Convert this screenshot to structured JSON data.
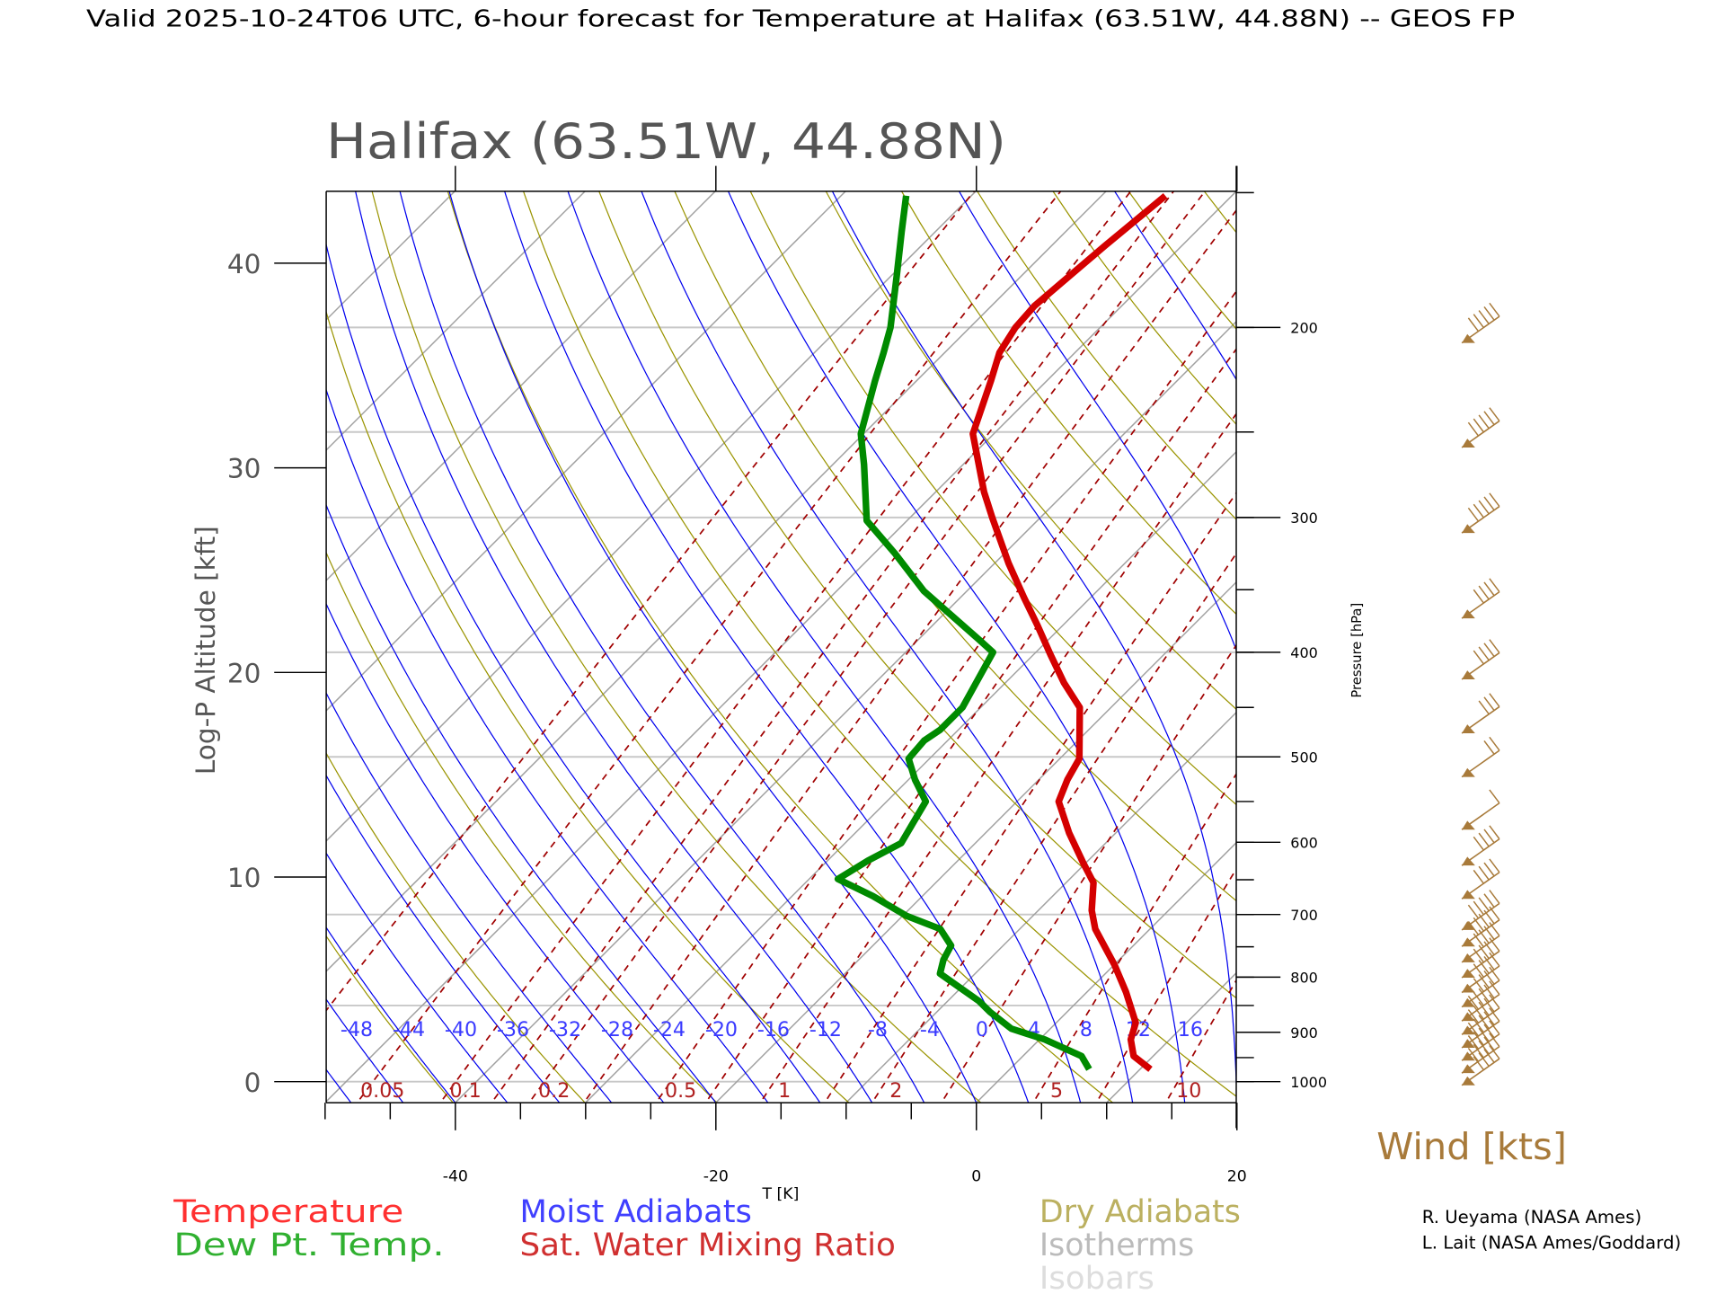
{
  "header": {
    "title": "Valid 2025-10-24T06 UTC, 6-hour forecast for Temperature at Halifax (63.51W, 44.88N) -- GEOS FP"
  },
  "chart_data": {
    "type": "line",
    "subtype": "skew-T log-P diagram",
    "title": "Halifax (63.51W, 44.88N)",
    "xlabel": "T [K]",
    "ylabel": "Log-P Altitude [kft]",
    "y2label": "Pressure [hPa]",
    "xlim": [
      -50,
      20
    ],
    "ylim": [
      -1,
      43.5
    ],
    "xticks": [
      "-40",
      "-20",
      "0",
      "20"
    ],
    "yticks": [
      "0",
      "10",
      "20",
      "30",
      "40"
    ],
    "pressure_ticks": [
      "1000",
      "900",
      "800",
      "700",
      "600",
      "500",
      "400",
      "300",
      "200"
    ],
    "isobars_hPa": [
      1000,
      850,
      700,
      500,
      400,
      300,
      250,
      200
    ],
    "moist_adiabat_labels": [
      "-48",
      "-44",
      "-40",
      "-36",
      "-32",
      "-28",
      "-24",
      "-20",
      "-16",
      "-12",
      "-8",
      "-4",
      "0",
      "4",
      "8",
      "12",
      "16"
    ],
    "mixing_ratio_labels": [
      "0.05",
      "0.1",
      "0.2",
      "0.5",
      "1",
      "2",
      "5",
      "10"
    ],
    "series": [
      {
        "name": "Temperature",
        "color": "#d40000",
        "pressure_hPa": [
          974,
          947,
          914,
          882,
          826,
          779,
          722,
          694,
          654,
          627,
          588,
          550,
          525,
          502,
          450,
          427,
          402,
          378,
          356,
          331,
          300,
          284,
          251,
          224,
          211,
          200,
          191,
          182,
          168,
          151
        ],
        "temperature_C": [
          10.8,
          8.5,
          7.0,
          6.1,
          3.0,
          0.0,
          -4.2,
          -5.9,
          -7.9,
          -10.2,
          -13.6,
          -16.8,
          -17.8,
          -18.5,
          -22.4,
          -25.5,
          -28.7,
          -31.9,
          -35.1,
          -38.9,
          -43.7,
          -46.3,
          -51.6,
          -54.3,
          -55.8,
          -56.5,
          -56.7,
          -56.4,
          -55.9,
          -55.1
        ]
      },
      {
        "name": "Dew Pt. Temp.",
        "color": "#008a00",
        "pressure_hPa": [
          974,
          947,
          914,
          893,
          862,
          842,
          807,
          794,
          771,
          748,
          722,
          702,
          673,
          649,
          624,
          601,
          577,
          550,
          525,
          502,
          483,
          472,
          450,
          400,
          389,
          351,
          324,
          302,
          268,
          251,
          224,
          211,
          200,
          179,
          163,
          151
        ],
        "temperature_C": [
          6.1,
          4.5,
          0.4,
          -3.0,
          -5.9,
          -7.6,
          -11.3,
          -12.7,
          -13.5,
          -14.0,
          -16.1,
          -19.7,
          -23.8,
          -27.8,
          -26.9,
          -25.7,
          -26.3,
          -27.0,
          -29.5,
          -31.6,
          -31.8,
          -31.4,
          -31.4,
          -33.3,
          -35.4,
          -43.3,
          -48.4,
          -53.1,
          -57.6,
          -60.2,
          -63.2,
          -64.7,
          -66.1,
          -69.6,
          -72.6,
          -75.0
        ]
      }
    ],
    "wind": {
      "label": "Wind [kts]",
      "color": "#a87a3a",
      "levels_hPa": [
        200,
        250,
        300,
        360,
        410,
        460,
        505,
        565,
        610,
        655,
        700,
        725,
        750,
        775,
        800,
        825,
        850,
        875,
        900,
        925,
        950,
        975
      ],
      "speed_kts": [
        45,
        45,
        45,
        40,
        40,
        30,
        20,
        10,
        40,
        40,
        45,
        45,
        40,
        40,
        40,
        40,
        45,
        45,
        50,
        45,
        45,
        40
      ]
    },
    "legend": {
      "temperature": "Temperature",
      "dewpoint": "Dew Pt. Temp.",
      "moist": "Moist Adiabats",
      "mixing": "Sat. Water Mixing Ratio",
      "dry": "Dry Adiabats",
      "isotherms": "Isotherms",
      "isobars": "Isobars"
    }
  },
  "credits": [
    "R. Ueyama (NASA Ames)",
    "L. Lait (NASA Ames/Goddard)"
  ]
}
